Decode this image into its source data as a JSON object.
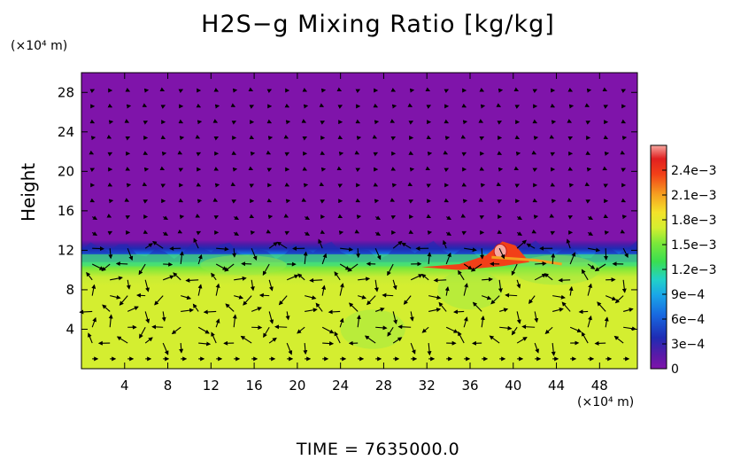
{
  "chart_data": {
    "type": "heatmap",
    "title": "H2S−g Mixing Ratio [kg/kg]",
    "ylabel": "Height",
    "y_unit": "(×10⁴ m)",
    "x_unit": "(×10⁴ m)",
    "footer": "TIME  =  7635000.0",
    "xlim": [
      0,
      51.5
    ],
    "ylim": [
      0,
      30
    ],
    "x_ticks": [
      4,
      8,
      12,
      16,
      20,
      24,
      28,
      32,
      36,
      40,
      44,
      48
    ],
    "y_ticks": [
      4,
      8,
      12,
      16,
      20,
      24,
      28
    ],
    "colorbar": {
      "min": 0,
      "max": 0.0027,
      "tick_values": [
        0,
        0.0003,
        0.0006,
        0.0009,
        0.0012,
        0.0015,
        0.0018,
        0.0021,
        0.0024
      ],
      "tick_labels": [
        "0",
        "3e−4",
        "6e−4",
        "9e−4",
        "1.2e−3",
        "1.5e−3",
        "1.8e−3",
        "2.1e−3",
        "2.4e−3"
      ]
    },
    "field": {
      "background_upper": 0,
      "lower_layer_value": 0.0016,
      "interface_height": 12,
      "high_concentration_region": {
        "x_range": [
          32,
          42
        ],
        "y_range": [
          10,
          13
        ],
        "peak": 0.0026
      }
    },
    "overlay": "velocity vectors"
  },
  "colors": {
    "upper_layer": "#7f14aa",
    "lower_layer": "#d4ee30",
    "interface": [
      "#1e2cb4",
      "#1aa0e8",
      "#2fd694"
    ],
    "hotspot": [
      "#ff3a10",
      "#ff9070"
    ],
    "arrows": "#000000"
  }
}
